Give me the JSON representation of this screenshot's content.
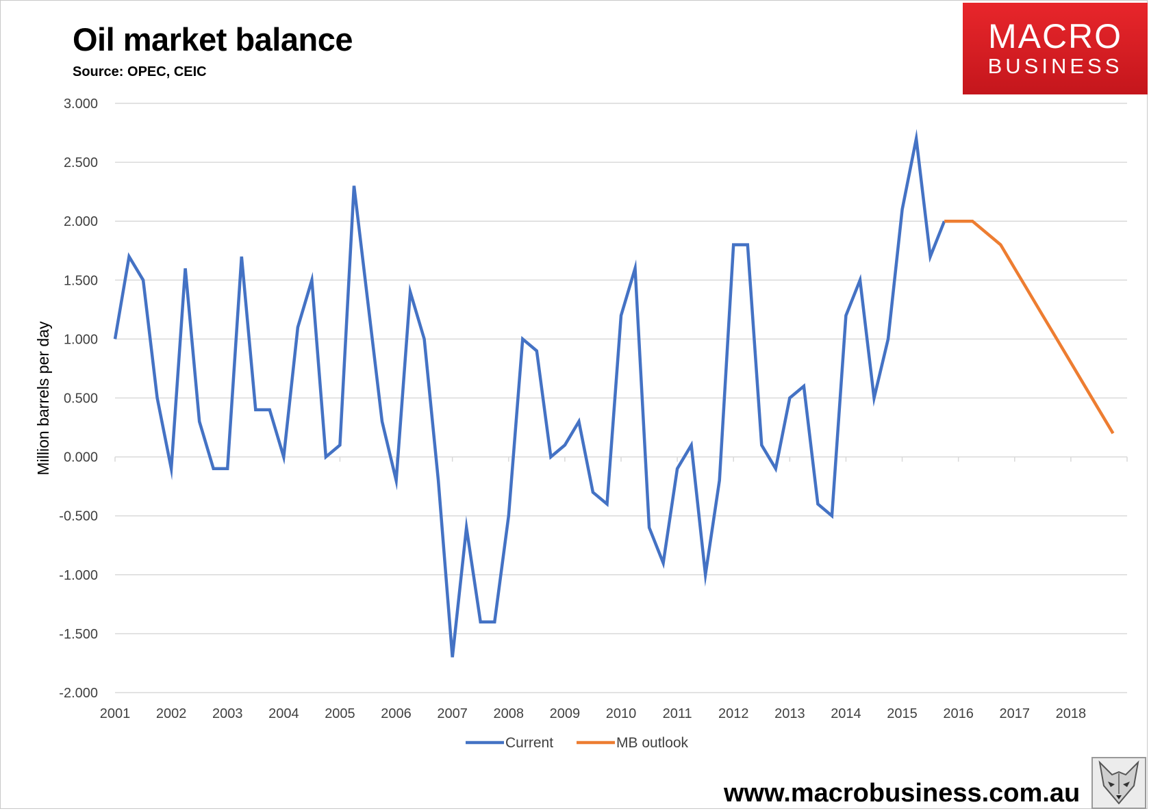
{
  "header": {
    "title": "Oil market balance",
    "subtitle": "Source: OPEC, CEIC"
  },
  "logo": {
    "line1": "MACRO",
    "line2": "BUSINESS",
    "color": "#e3262b"
  },
  "footer": {
    "url": "www.macrobusiness.com.au",
    "icon": "fox-icon"
  },
  "chart_data": {
    "type": "line",
    "title": "Oil market balance",
    "subtitle": "Source: OPEC, CEIC",
    "ylabel": "Million barrels per day",
    "xlabel": "",
    "ylim": [
      -2.0,
      3.0
    ],
    "yticks": [
      "3.000",
      "2.500",
      "2.000",
      "1.500",
      "1.000",
      "0.500",
      "0.000",
      "-0.500",
      "-1.000",
      "-1.500",
      "-2.000"
    ],
    "xticks": [
      "2001",
      "2002",
      "2003",
      "2004",
      "2005",
      "2006",
      "2007",
      "2008",
      "2009",
      "2010",
      "2011",
      "2012",
      "2013",
      "2014",
      "2015",
      "2016",
      "2017",
      "2018"
    ],
    "x_range": [
      "2001-01",
      "2018-12"
    ],
    "grid": "horizontal",
    "legend_position": "bottom",
    "series": [
      {
        "name": "Current",
        "color": "#4472c4",
        "x": [
          "2001Q1",
          "2001Q2",
          "2001Q3",
          "2001Q4",
          "2002Q1",
          "2002Q2",
          "2002Q3",
          "2002Q4",
          "2003Q1",
          "2003Q2",
          "2003Q3",
          "2003Q4",
          "2004Q1",
          "2004Q2",
          "2004Q3",
          "2004Q4",
          "2005Q1",
          "2005Q2",
          "2005Q3",
          "2005Q4",
          "2006Q1",
          "2006Q2",
          "2006Q3",
          "2006Q4",
          "2007Q1",
          "2007Q2",
          "2007Q3",
          "2007Q4",
          "2008Q1",
          "2008Q2",
          "2008Q3",
          "2008Q4",
          "2009Q1",
          "2009Q2",
          "2009Q3",
          "2009Q4",
          "2010Q1",
          "2010Q2",
          "2010Q3",
          "2010Q4",
          "2011Q1",
          "2011Q2",
          "2011Q3",
          "2011Q4",
          "2012Q1",
          "2012Q2",
          "2012Q3",
          "2012Q4",
          "2013Q1",
          "2013Q2",
          "2013Q3",
          "2013Q4",
          "2014Q1",
          "2014Q2",
          "2014Q3",
          "2014Q4",
          "2015Q1",
          "2015Q2",
          "2015Q3",
          "2015Q4"
        ],
        "values": [
          1.0,
          1.7,
          1.5,
          0.5,
          -0.1,
          1.6,
          0.3,
          -0.1,
          -0.1,
          1.7,
          0.4,
          0.4,
          0.0,
          1.1,
          1.5,
          0.0,
          0.1,
          2.3,
          1.3,
          0.3,
          -0.2,
          1.4,
          1.0,
          -0.2,
          -1.7,
          -0.6,
          -1.4,
          -1.4,
          -0.5,
          1.0,
          0.9,
          0.0,
          0.1,
          0.3,
          -0.3,
          -0.4,
          1.2,
          1.6,
          -0.6,
          -0.9,
          -0.1,
          0.1,
          -1.0,
          -0.2,
          1.8,
          1.8,
          0.1,
          -0.1,
          0.5,
          0.6,
          -0.4,
          -0.5,
          1.2,
          1.5,
          0.5,
          1.0,
          2.1,
          2.7,
          1.7,
          2.0
        ]
      },
      {
        "name": "MB outlook",
        "color": "#ed7d31",
        "x": [
          "2015Q4",
          "2016Q1",
          "2016Q2",
          "2016Q3",
          "2016Q4",
          "2017Q1",
          "2017Q2",
          "2017Q3",
          "2017Q4",
          "2018Q1",
          "2018Q2",
          "2018Q3",
          "2018Q4"
        ],
        "values": [
          2.0,
          2.0,
          2.0,
          1.9,
          1.8,
          1.6,
          1.4,
          1.2,
          1.0,
          0.8,
          0.6,
          0.4,
          0.2
        ]
      }
    ]
  }
}
